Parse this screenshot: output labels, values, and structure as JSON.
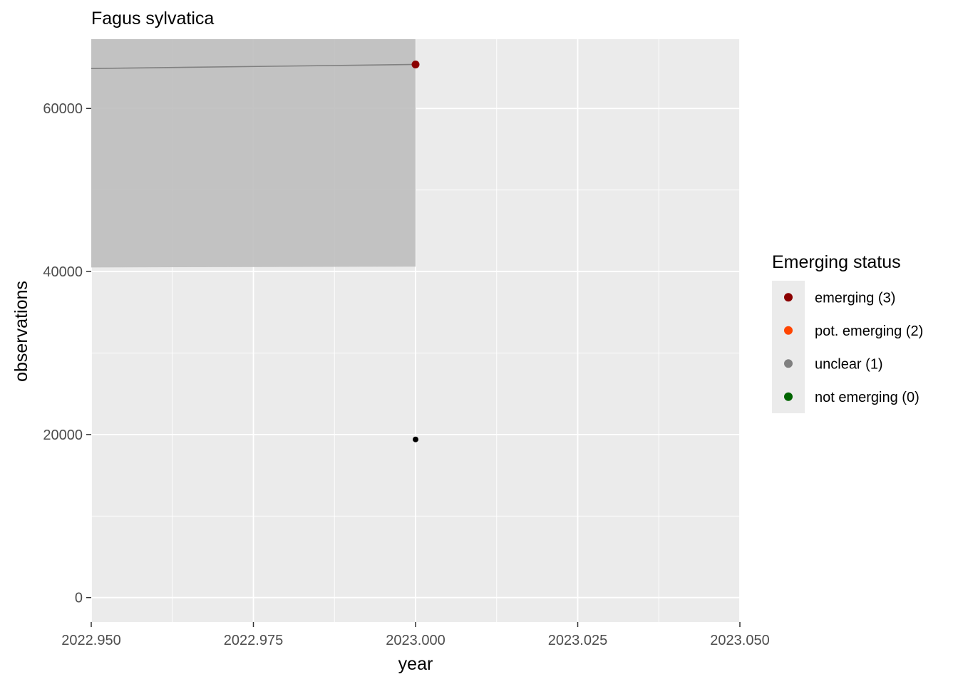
{
  "chart_data": {
    "type": "line",
    "title": "Fagus sylvatica",
    "xlabel": "year",
    "ylabel": "observations",
    "xlim": [
      2022.95,
      2023.05
    ],
    "ylim": [
      -3000,
      68500
    ],
    "x_ticks": [
      2022.95,
      2022.975,
      2023.0,
      2023.025,
      2023.05
    ],
    "x_tick_labels": [
      "2022.950",
      "2022.975",
      "2023.000",
      "2023.025",
      "2023.050"
    ],
    "y_ticks": [
      0,
      20000,
      40000,
      60000
    ],
    "y_tick_labels": [
      "0",
      "20000",
      "40000",
      "60000"
    ],
    "grid": true,
    "ribbon": {
      "x": [
        2022.95,
        2023.0
      ],
      "lower": [
        40500,
        40600
      ],
      "upper": [
        68500,
        68500
      ],
      "color": "#bebebe"
    },
    "trend_line": {
      "x": [
        2022.95,
        2023.0
      ],
      "y": [
        64900,
        65400
      ],
      "color": "#808080"
    },
    "points": [
      {
        "x": 2023.0,
        "y": 65400,
        "status": "emerging (3)",
        "color": "#8b0000"
      },
      {
        "x": 2023.0,
        "y": 19400,
        "status": "observed",
        "color": "#000000"
      }
    ],
    "legend": {
      "title": "Emerging status",
      "position": "right",
      "entries": [
        {
          "label": "emerging (3)",
          "color": "#8b0000"
        },
        {
          "label": "pot. emerging (2)",
          "color": "#ff4500"
        },
        {
          "label": "unclear (1)",
          "color": "#808080"
        },
        {
          "label": "not emerging (0)",
          "color": "#006400"
        }
      ]
    }
  }
}
